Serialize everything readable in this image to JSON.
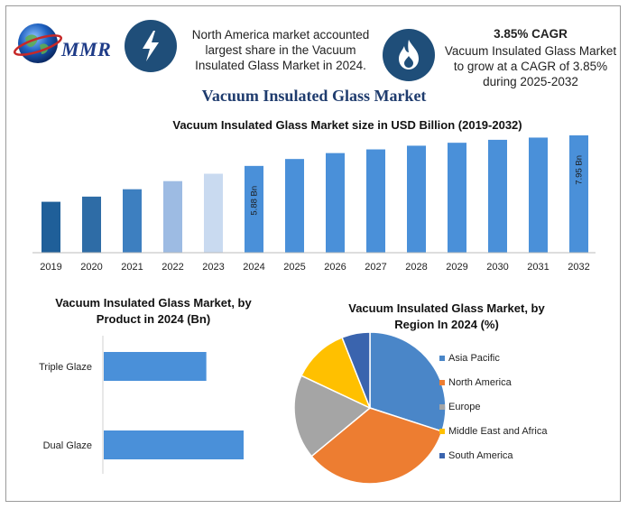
{
  "header": {
    "logo_text": "MMR",
    "box1_text": "North America market accounted largest share in the Vacuum Insulated Glass Market in 2024.",
    "box2_title": "3.85% CAGR",
    "box2_text": "Vacuum Insulated Glass Market to grow at a CAGR of 3.85% during 2025-2032",
    "icons": [
      "lightning-bolt-icon",
      "flame-icon",
      "globe-icon"
    ],
    "accent_color": "#1f4e79"
  },
  "main_title": "Vacuum Insulated Glass Market",
  "chart_data": [
    {
      "type": "bar",
      "title": "Vacuum Insulated Glass Market size in USD Billion (2019-2032)",
      "categories": [
        "2019",
        "2020",
        "2021",
        "2022",
        "2023",
        "2024",
        "2025",
        "2026",
        "2027",
        "2028",
        "2029",
        "2030",
        "2031",
        "2032"
      ],
      "values": [
        3.45,
        3.8,
        4.3,
        4.85,
        5.35,
        5.88,
        6.35,
        6.75,
        7.0,
        7.25,
        7.45,
        7.65,
        7.8,
        7.95
      ],
      "colors": [
        "#1f5f99",
        "#2e6ca6",
        "#3d7fc0",
        "#9dbbe3",
        "#c9daf0",
        "#4a90d9",
        "#4a90d9",
        "#4a90d9",
        "#4a90d9",
        "#4a90d9",
        "#4a90d9",
        "#4a90d9",
        "#4a90d9",
        "#4a90d9"
      ],
      "data_labels": {
        "2024": "5.88 Bn",
        "2032": "7.95 Bn"
      },
      "ylim": [
        0,
        7.95
      ],
      "grid": false
    },
    {
      "type": "bar",
      "orientation": "horizontal",
      "title": "Vacuum Insulated Glass Market, by Product in 2024 (Bn)",
      "categories": [
        "Triple Glaze",
        "Dual Glaze"
      ],
      "values": [
        2.2,
        3.0
      ],
      "xlim": [
        0,
        3.0
      ],
      "color": "#4a90d9"
    },
    {
      "type": "pie",
      "title": "Vacuum Insulated Glass Market, by Region In 2024 (%)",
      "labels": [
        "Asia Pacific",
        "North America",
        "Europe",
        "Middle East and Africa",
        "South America"
      ],
      "values": [
        30,
        34,
        18,
        12,
        6
      ],
      "colors": [
        "#4a86c8",
        "#ed7d31",
        "#a5a5a5",
        "#ffc000",
        "#3a64ae"
      ],
      "legend_position": "right"
    }
  ]
}
